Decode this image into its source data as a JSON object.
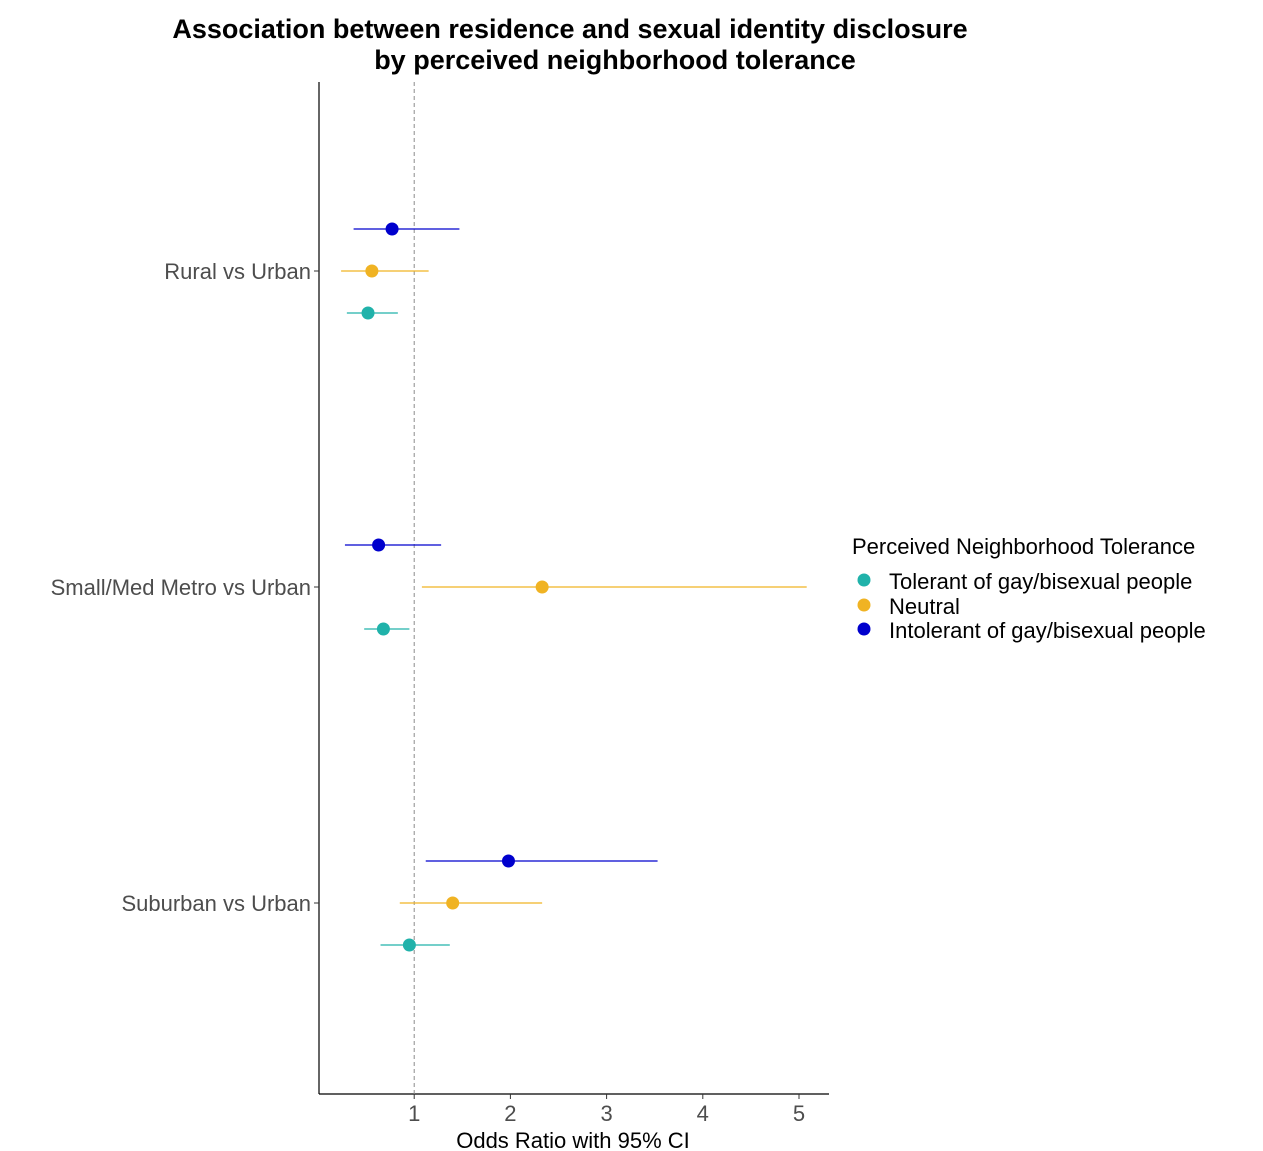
{
  "chart_data": {
    "type": "scatter",
    "title": [
      "Association between residence and sexual identity disclosure",
      "by perceived neighborhood tolerance"
    ],
    "xlabel": "Odds Ratio with 95% CI",
    "ylabel": "",
    "xlim": [
      0.0,
      5.3
    ],
    "x_ticks": [
      1,
      2,
      3,
      4,
      5
    ],
    "reference_line": 1,
    "grid": false,
    "categories": [
      "Rural vs Urban",
      "Small/Med Metro vs Urban",
      "Suburban vs Urban"
    ],
    "legend": {
      "title": "Perceived Neighborhood Tolerance",
      "placement": "right"
    },
    "series": [
      {
        "name": "Tolerant of gay/bisexual people",
        "color": "#20b2aa",
        "points": [
          {
            "category": "Rural vs Urban",
            "or": 0.52,
            "lower": 0.3,
            "upper": 0.83
          },
          {
            "category": "Small/Med Metro vs Urban",
            "or": 0.68,
            "lower": 0.48,
            "upper": 0.95
          },
          {
            "category": "Suburban vs Urban",
            "or": 0.95,
            "lower": 0.65,
            "upper": 1.37
          }
        ]
      },
      {
        "name": "Neutral",
        "color": "#f0b323",
        "points": [
          {
            "category": "Rural vs Urban",
            "or": 0.56,
            "lower": 0.24,
            "upper": 1.15
          },
          {
            "category": "Small/Med Metro vs Urban",
            "or": 2.33,
            "lower": 1.08,
            "upper": 5.08
          },
          {
            "category": "Suburban vs Urban",
            "or": 1.4,
            "lower": 0.85,
            "upper": 2.33
          }
        ]
      },
      {
        "name": "Intolerant of gay/bisexual people",
        "color": "#0000cd",
        "points": [
          {
            "category": "Rural vs Urban",
            "or": 0.77,
            "lower": 0.37,
            "upper": 1.47
          },
          {
            "category": "Small/Med Metro vs Urban",
            "or": 0.63,
            "lower": 0.28,
            "upper": 1.28
          },
          {
            "category": "Suburban vs Urban",
            "or": 1.98,
            "lower": 1.12,
            "upper": 3.53
          }
        ]
      }
    ]
  }
}
